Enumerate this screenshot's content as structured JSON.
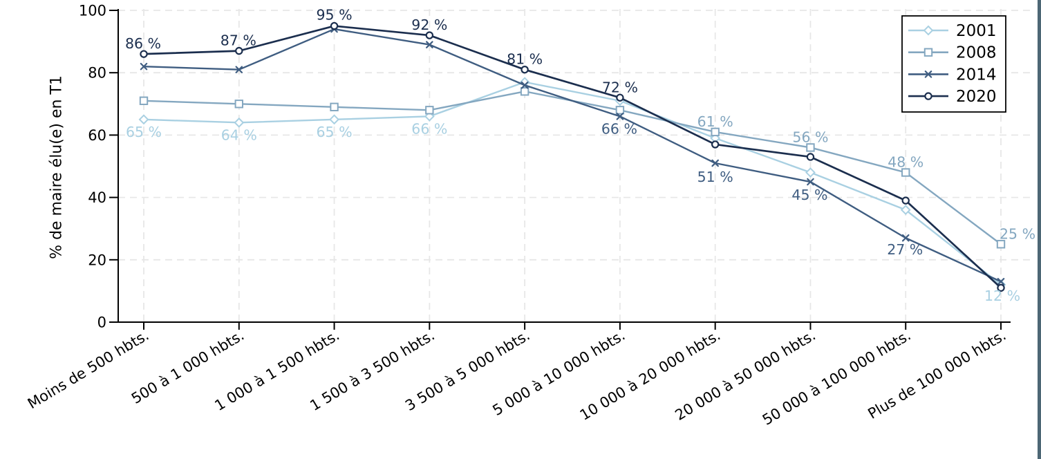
{
  "figure": {
    "background": "#ffffff",
    "right_edge_strip_color": "#4d6775",
    "axis_color": "#000000",
    "grid_color": "#e7e7e7",
    "text_color": "#000000"
  },
  "chart_data": {
    "type": "line",
    "title": "",
    "xlabel": "",
    "ylabel": "% de maire élu(e) en T1",
    "ylim": [
      0,
      100
    ],
    "yticks": [
      0,
      20,
      40,
      60,
      80,
      100
    ],
    "grid": {
      "horizontal": true,
      "vertical": true,
      "style": "dashed"
    },
    "legend_position": "top-right",
    "categories": [
      "Moins de 500 hbts.",
      "500 à 1 000 hbts.",
      "1 000 à 1 500 hbts.",
      "1 500 à 3 500 hbts.",
      "3 500 à 5 000 hbts.",
      "5 000 à 10 000 hbts.",
      "10 000 à 20 000 hbts.",
      "20 000 à 50 000 hbts.",
      "50 000 à 100 000 hbts.",
      "Plus de 100 000 hbts."
    ],
    "series": [
      {
        "name": "2001",
        "color": "#a9d0e2",
        "marker": "diamond",
        "values": [
          65,
          64,
          65,
          66,
          77,
          71,
          59,
          48,
          36,
          12
        ],
        "point_labels": [
          {
            "i": 0,
            "text": "65 %",
            "dx": 0,
            "dy": 25
          },
          {
            "i": 1,
            "text": "64 %",
            "dx": 0,
            "dy": 25
          },
          {
            "i": 2,
            "text": "65 %",
            "dx": 0,
            "dy": 25
          },
          {
            "i": 3,
            "text": "66 %",
            "dx": 0,
            "dy": 25
          },
          {
            "i": 9,
            "text": "12 %",
            "dx": 2,
            "dy": 23
          }
        ]
      },
      {
        "name": "2008",
        "color": "#84a7c0",
        "marker": "square",
        "values": [
          71,
          70,
          69,
          68,
          74,
          68,
          61,
          56,
          48,
          25
        ],
        "point_labels": [
          {
            "i": 6,
            "text": "61 %",
            "dx": 0,
            "dy": -8
          },
          {
            "i": 7,
            "text": "56 %",
            "dx": 0,
            "dy": -8
          },
          {
            "i": 8,
            "text": "48 %",
            "dx": 0,
            "dy": -8
          },
          {
            "i": 9,
            "text": "25 %",
            "dx": 24,
            "dy": -8
          }
        ]
      },
      {
        "name": "2014",
        "color": "#3f5d81",
        "marker": "x",
        "values": [
          82,
          81,
          94,
          89,
          76,
          66,
          51,
          45,
          27,
          13
        ],
        "point_labels": [
          {
            "i": 5,
            "text": "66 %",
            "dx": -1,
            "dy": 25
          },
          {
            "i": 6,
            "text": "51 %",
            "dx": 0,
            "dy": 27
          },
          {
            "i": 7,
            "text": "45 %",
            "dx": -1,
            "dy": 26
          },
          {
            "i": 8,
            "text": "27 %",
            "dx": -1,
            "dy": 24
          }
        ]
      },
      {
        "name": "2020",
        "color": "#1b2e4e",
        "marker": "circle",
        "values": [
          86,
          87,
          95,
          92,
          81,
          72,
          57,
          53,
          39,
          11
        ],
        "point_labels": [
          {
            "i": 0,
            "text": "86 %",
            "dx": -1,
            "dy": -8
          },
          {
            "i": 1,
            "text": "87 %",
            "dx": -1,
            "dy": -8
          },
          {
            "i": 2,
            "text": "95 %",
            "dx": 0,
            "dy": -9
          },
          {
            "i": 3,
            "text": "92 %",
            "dx": 0,
            "dy": -8
          },
          {
            "i": 4,
            "text": "81 %",
            "dx": 0,
            "dy": -8
          },
          {
            "i": 5,
            "text": "72 %",
            "dx": 0,
            "dy": -8
          }
        ]
      }
    ]
  }
}
